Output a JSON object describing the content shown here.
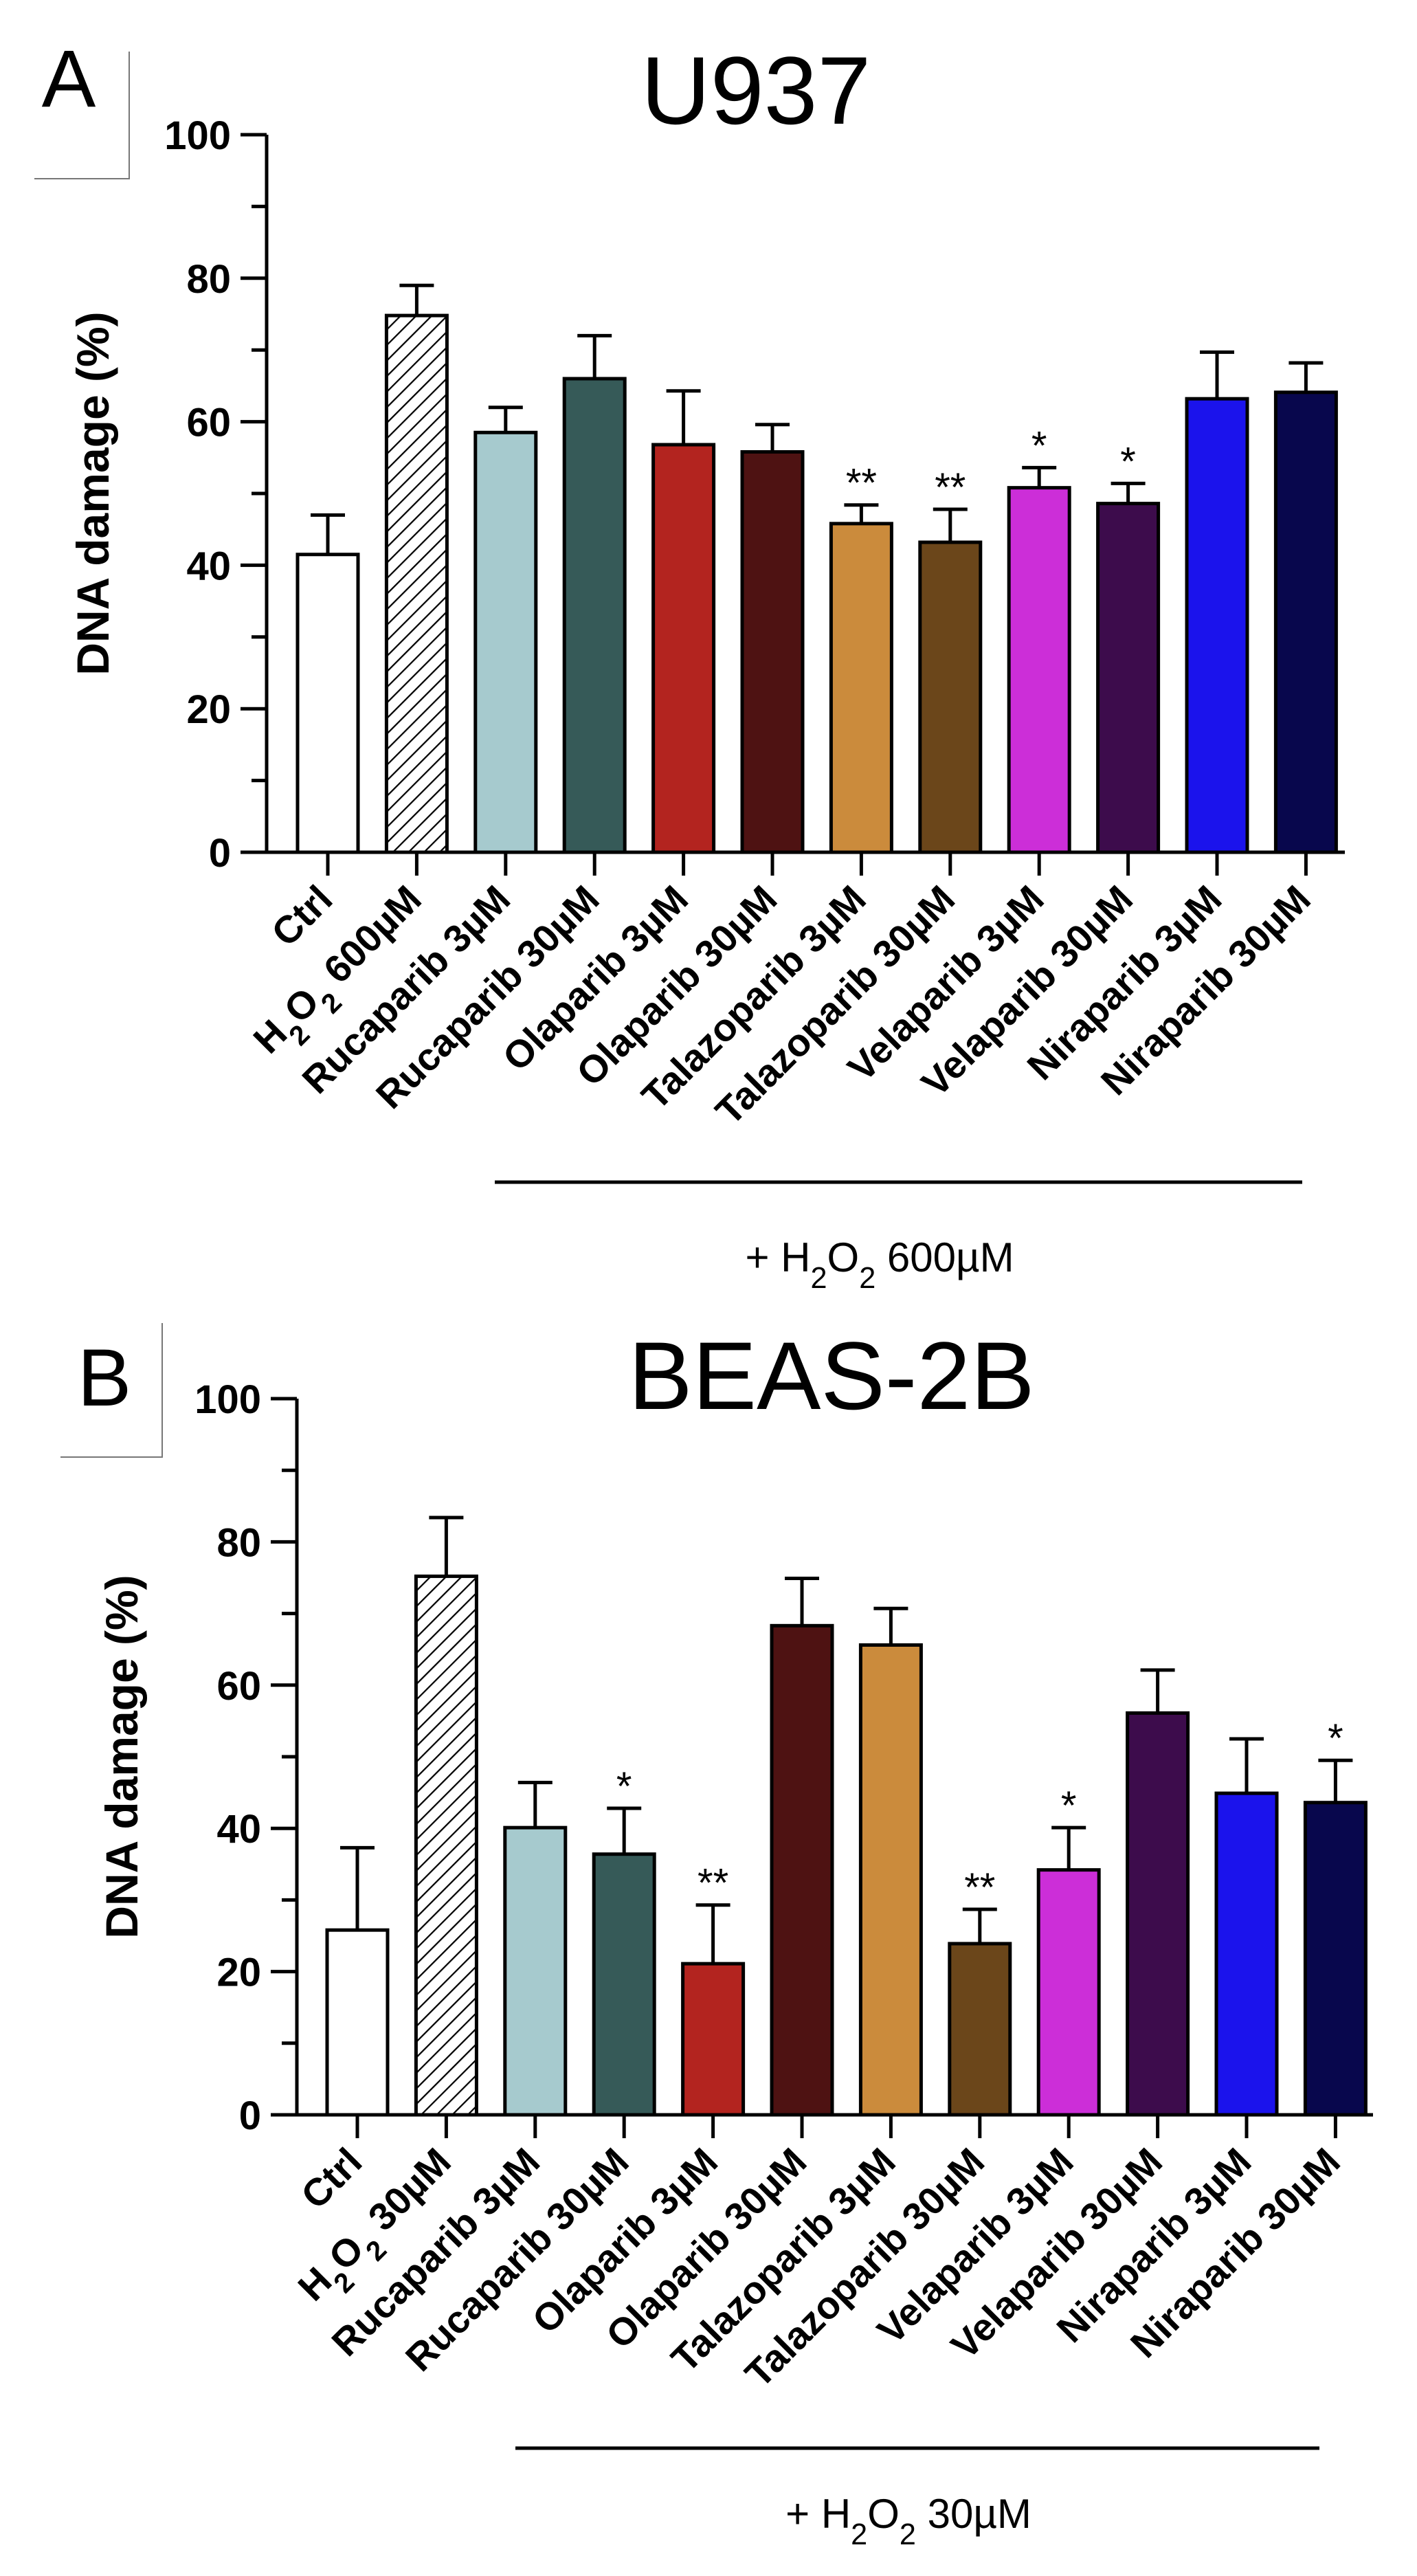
{
  "chart_data": [
    {
      "type": "bar",
      "panel_letter": "A",
      "title": "U937",
      "ylabel": "DNA damage (%)",
      "xlabel": "",
      "ylim": [
        0,
        100
      ],
      "yticks": [
        "0",
        "20",
        "40",
        "60",
        "80",
        "100"
      ],
      "categories": [
        "Ctrl",
        "H2O2 600µM",
        "Rucaparib 3µM",
        "Rucaparib 30µM",
        "Olaparib 3µM",
        "Olaparib 30µM",
        "Talazoparib 3µM",
        "Talazoparib 30µM",
        "Velaparib 3µM",
        "Velaparib 30µM",
        "Niraparib 3µM",
        "Niraparib 30µM"
      ],
      "values": [
        41.5,
        74.8,
        58.5,
        66,
        56.8,
        55.8,
        45.8,
        43.2,
        50.8,
        48.6,
        63.2,
        64.1
      ],
      "errors": [
        5.5,
        4.2,
        3.5,
        6,
        7.5,
        3.8,
        2.6,
        4.6,
        2.8,
        2.8,
        6.5,
        4.1
      ],
      "significance": [
        "",
        "",
        "",
        "",
        "",
        "",
        "**",
        "**",
        "*",
        "*",
        "",
        ""
      ],
      "colors": [
        "#ffffff",
        "hatch",
        "#a6cace",
        "#365a58",
        "#b3241f",
        "#4e1212",
        "#cb8b3c",
        "#6b461a",
        "#cc2ed8",
        "#3d0c4c",
        "#1b13ec",
        "#08074d"
      ],
      "treatment_label": "+ H2O2 600µM"
    },
    {
      "type": "bar",
      "panel_letter": "B",
      "title": "BEAS-2B",
      "ylabel": "DNA damage (%)",
      "xlabel": "",
      "ylim": [
        0,
        100
      ],
      "yticks": [
        "0",
        "20",
        "40",
        "60",
        "80",
        "100"
      ],
      "categories": [
        "Ctrl",
        "H2O2 30µM",
        "Rucaparib 3µM",
        "Rucaparib 30µM",
        "Olaparib 3µM",
        "Olaparib 30µM",
        "Talazoparib 3µM",
        "Talazoparib 30µM",
        "Velaparib 3µM",
        "Velaparib 30µM",
        "Niraparib 3µM",
        "Niraparib 30µM"
      ],
      "values": [
        25.8,
        75.2,
        40.1,
        36.4,
        21.1,
        68.3,
        65.6,
        23.9,
        34.2,
        56.1,
        44.9,
        43.6
      ],
      "errors": [
        11.5,
        8.2,
        6.3,
        6.4,
        8.2,
        6.6,
        5.1,
        4.8,
        5.9,
        6,
        7.6,
        5.9
      ],
      "significance": [
        "",
        "",
        "",
        "*",
        "**",
        "",
        "",
        "**",
        "*",
        "",
        "",
        "*"
      ],
      "colors": [
        "#ffffff",
        "hatch",
        "#a6cace",
        "#365a58",
        "#b3241f",
        "#4e1212",
        "#cb8b3c",
        "#6b461a",
        "#cc2ed8",
        "#3d0c4c",
        "#1b13ec",
        "#08074d"
      ],
      "treatment_label": "+ H2O2 30µM"
    }
  ]
}
